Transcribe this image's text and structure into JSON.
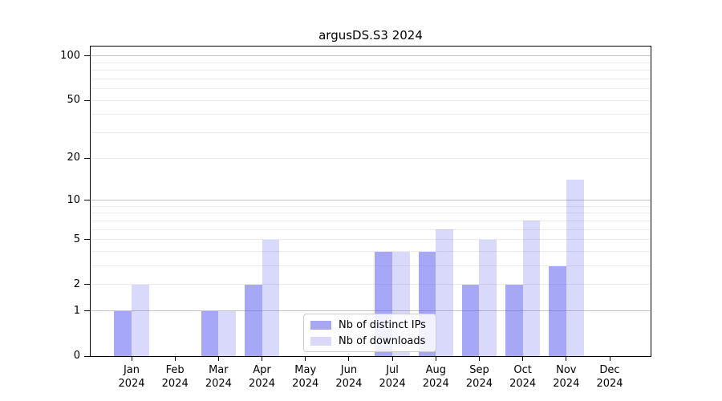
{
  "chart_data": {
    "type": "bar",
    "title": "argusDS.S3 2024",
    "categories": [
      "Jan",
      "Feb",
      "Mar",
      "Apr",
      "May",
      "Jun",
      "Jul",
      "Aug",
      "Sep",
      "Oct",
      "Nov",
      "Dec"
    ],
    "category_year": "2024",
    "series": [
      {
        "name": "Nb of distinct IPs",
        "values": [
          1,
          0,
          1,
          2,
          0,
          0,
          4,
          4,
          2,
          2,
          3,
          0
        ],
        "color": "rgba(80,80,240,0.5)",
        "legend_color": "#a7a7f3"
      },
      {
        "name": "Nb of downloads",
        "values": [
          2,
          0,
          1,
          5,
          0,
          0,
          4,
          6,
          5,
          7,
          14,
          0
        ],
        "color": "rgba(80,80,240,0.22)",
        "legend_color": "#d9d9f8"
      }
    ],
    "yscale": "log1p",
    "ylim": [
      0,
      116
    ],
    "yticks": [
      0,
      1,
      2,
      5,
      10,
      20,
      50,
      100
    ],
    "ytick_labels": [
      "0",
      "1",
      "2",
      "5",
      "10",
      "20",
      "50",
      "100"
    ],
    "grid_major": [
      1,
      10,
      100
    ],
    "grid_minor": [
      2,
      3,
      4,
      5,
      6,
      7,
      8,
      9,
      20,
      30,
      40,
      50,
      60,
      70,
      80,
      90
    ],
    "legend_position": "lower center",
    "grid": "on"
  },
  "colors": {
    "grid_major": "#c3c3c3",
    "grid_minor": "#ebebeb",
    "spine": "#000000",
    "background": "#ffffff"
  }
}
